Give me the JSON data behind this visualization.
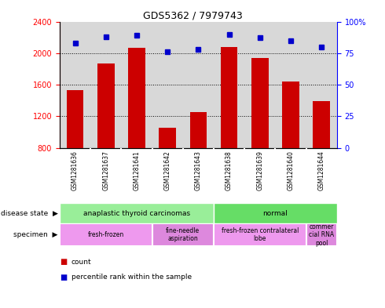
{
  "title": "GDS5362 / 7979743",
  "samples": [
    "GSM1281636",
    "GSM1281637",
    "GSM1281641",
    "GSM1281642",
    "GSM1281643",
    "GSM1281638",
    "GSM1281639",
    "GSM1281640",
    "GSM1281644"
  ],
  "counts": [
    1530,
    1870,
    2070,
    1050,
    1250,
    2075,
    1940,
    1640,
    1390
  ],
  "percentile_ranks": [
    83,
    88,
    89,
    76,
    78,
    90,
    87,
    85,
    80
  ],
  "y_min": 800,
  "y_max": 2400,
  "y_ticks": [
    800,
    1200,
    1600,
    2000,
    2400
  ],
  "y2_ticks": [
    0,
    25,
    50,
    75,
    100
  ],
  "bar_color": "#cc0000",
  "dot_color": "#0000cc",
  "disease_state": [
    {
      "label": "anaplastic thyroid carcinomas",
      "start": 0,
      "end": 5,
      "color": "#99ee99"
    },
    {
      "label": "normal",
      "start": 5,
      "end": 9,
      "color": "#66dd66"
    }
  ],
  "specimen": [
    {
      "label": "fresh-frozen",
      "start": 0,
      "end": 3,
      "color": "#ee99ee"
    },
    {
      "label": "fine-needle\naspiration",
      "start": 3,
      "end": 5,
      "color": "#dd88dd"
    },
    {
      "label": "fresh-frozen contralateral\nlobe",
      "start": 5,
      "end": 8,
      "color": "#ee99ee"
    },
    {
      "label": "commer\ncial RNA\npool",
      "start": 8,
      "end": 9,
      "color": "#dd88dd"
    }
  ],
  "legend_count": "count",
  "legend_percentile": "percentile rank within the sample",
  "bar_bg_color": "#d8d8d8",
  "label_bg_color": "#d0d0d0"
}
